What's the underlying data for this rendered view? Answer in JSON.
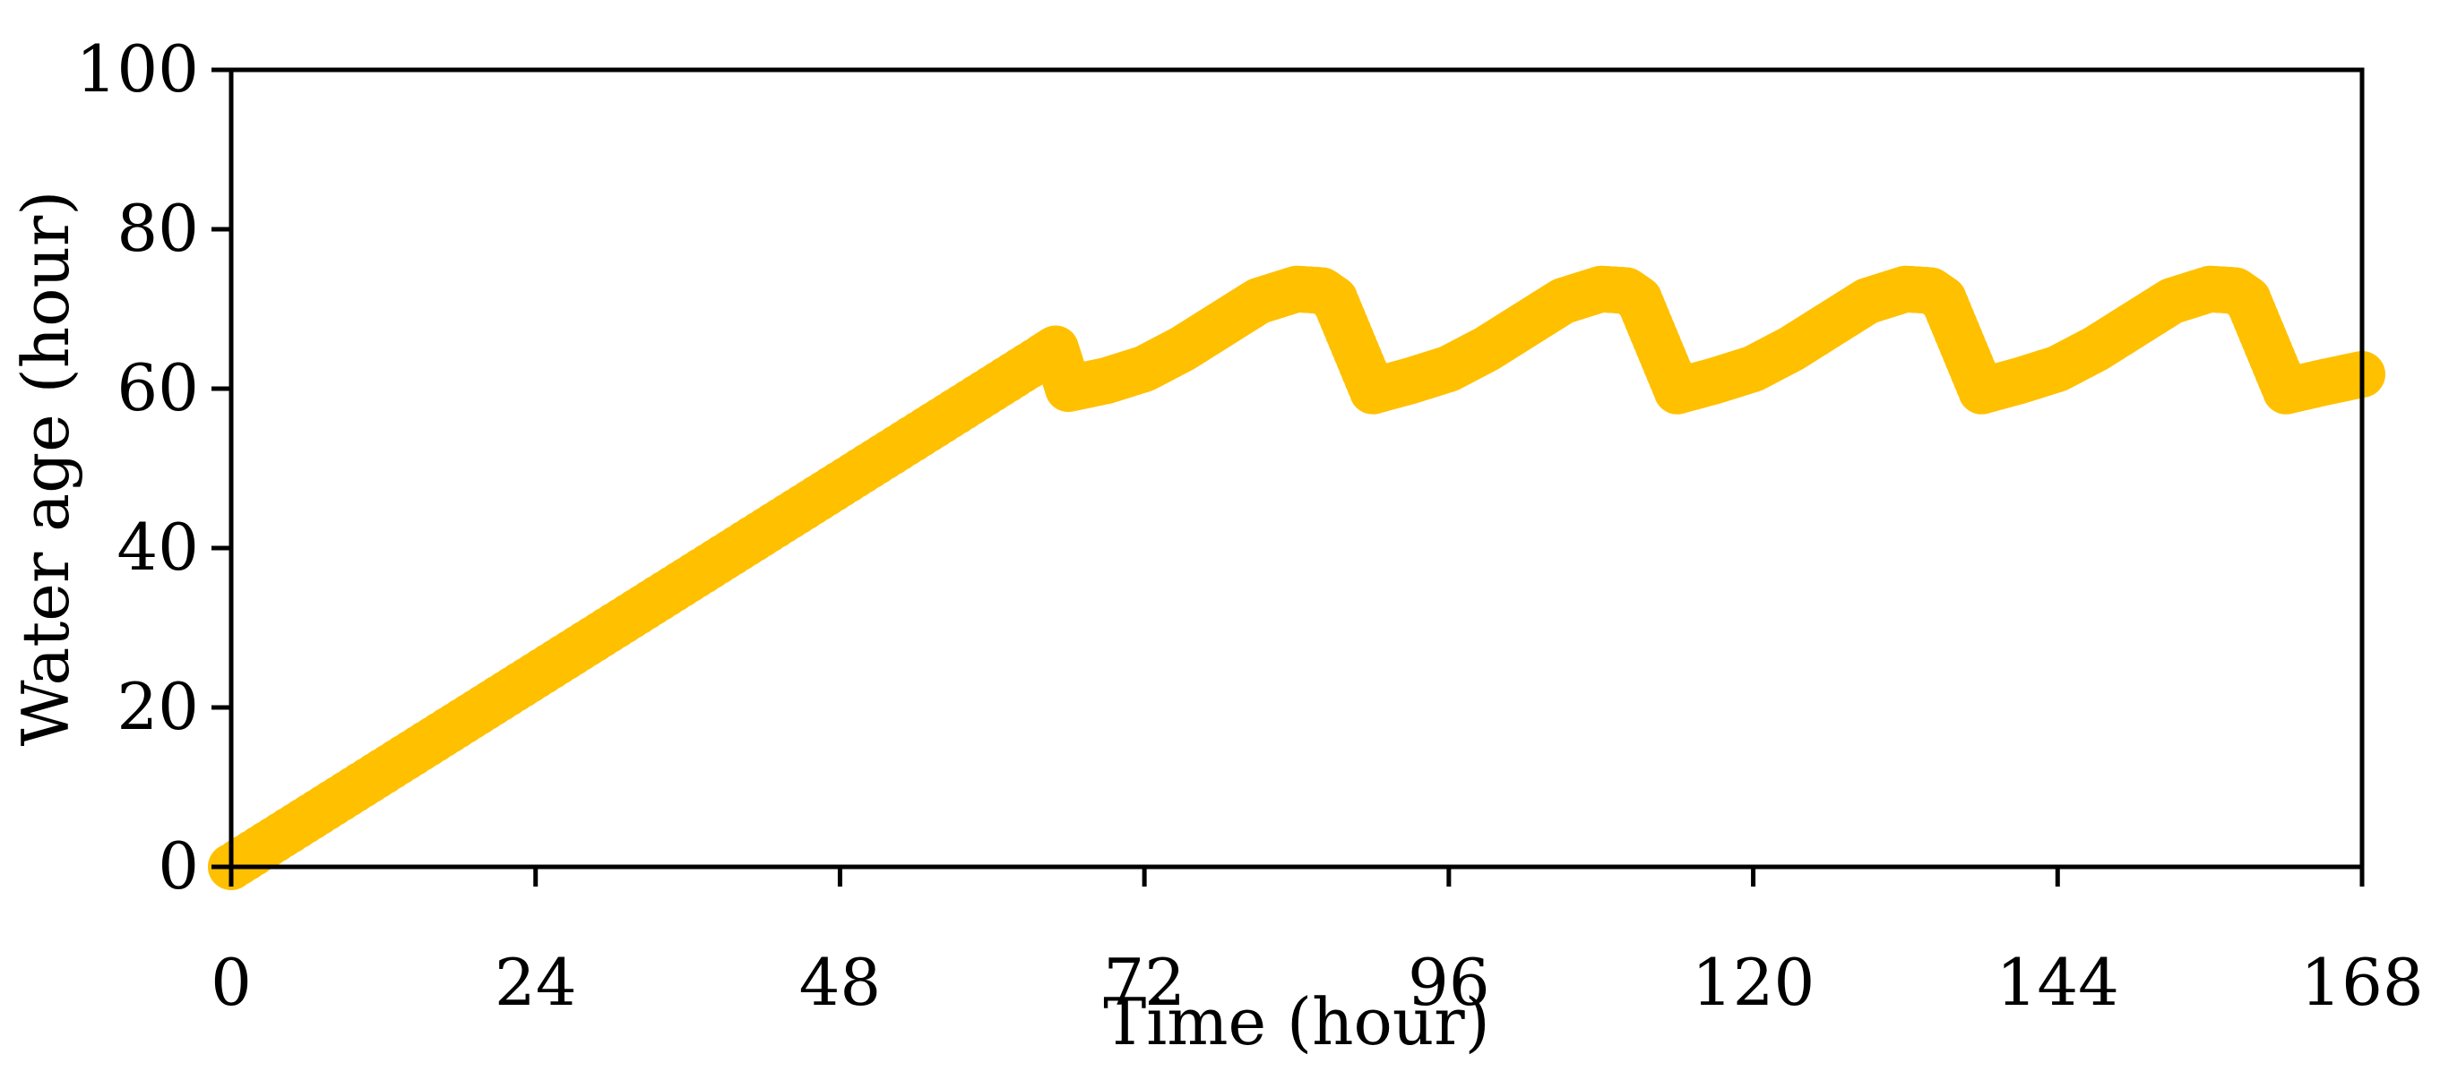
{
  "chart_data": {
    "type": "scatter",
    "title": "",
    "xlabel": "Time (hour)",
    "ylabel": "Water age (hour)",
    "xlim": [
      0,
      168
    ],
    "ylim": [
      0,
      100
    ],
    "xticks": [
      "0",
      "24",
      "48",
      "72",
      "96",
      "120",
      "144",
      "168"
    ],
    "yticks": [
      "0",
      "20",
      "40",
      "60",
      "80",
      "100"
    ],
    "grid": false,
    "legend": "none",
    "series": [
      {
        "color": "#FFC000",
        "marker": "circle",
        "points": [
          [
            0,
            0
          ],
          [
            8,
            8
          ],
          [
            16,
            16
          ],
          [
            24,
            24
          ],
          [
            32,
            32
          ],
          [
            40,
            40
          ],
          [
            48,
            48
          ],
          [
            56,
            56
          ],
          [
            64,
            64
          ],
          [
            65,
            65
          ],
          [
            66,
            60
          ],
          [
            69,
            61
          ],
          [
            72,
            62.5
          ],
          [
            75,
            65
          ],
          [
            78,
            68
          ],
          [
            81,
            71
          ],
          [
            84,
            72.5
          ],
          [
            86,
            72.3
          ],
          [
            87,
            71.2
          ],
          [
            90,
            59.7
          ],
          [
            93,
            61
          ],
          [
            96,
            62.5
          ],
          [
            99,
            65
          ],
          [
            102,
            68
          ],
          [
            105,
            71
          ],
          [
            108,
            72.5
          ],
          [
            110,
            72.3
          ],
          [
            111,
            71.2
          ],
          [
            114,
            59.7
          ],
          [
            117,
            61
          ],
          [
            120,
            62.5
          ],
          [
            123,
            65
          ],
          [
            126,
            68
          ],
          [
            129,
            71
          ],
          [
            132,
            72.5
          ],
          [
            134,
            72.3
          ],
          [
            135,
            71.2
          ],
          [
            138,
            59.7
          ],
          [
            141,
            61
          ],
          [
            144,
            62.5
          ],
          [
            147,
            65
          ],
          [
            150,
            68
          ],
          [
            153,
            71
          ],
          [
            156,
            72.5
          ],
          [
            158,
            72.3
          ],
          [
            159,
            71.2
          ],
          [
            162,
            59.7
          ],
          [
            165,
            60.8
          ],
          [
            168,
            61.8
          ]
        ]
      }
    ]
  }
}
